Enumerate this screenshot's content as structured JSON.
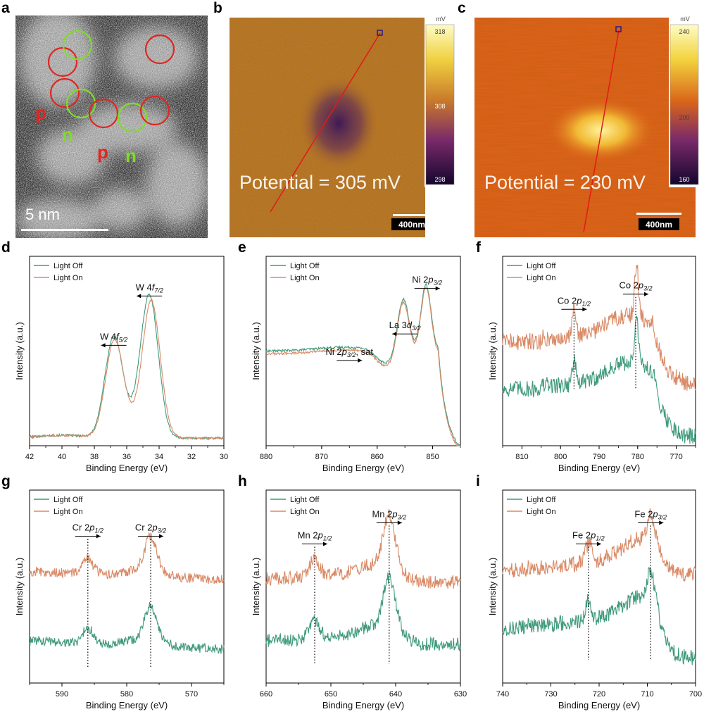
{
  "panel_letters": [
    "a",
    "b",
    "c",
    "d",
    "e",
    "f",
    "g",
    "h",
    "i"
  ],
  "stem": {
    "labels": {
      "p1": "p",
      "n1": "n",
      "p2": "p",
      "n2": "n"
    },
    "scale_bar": "5 nm",
    "colors": {
      "p": "#e0261f",
      "n": "#7fdc2a"
    }
  },
  "kpfm_b": {
    "unit": "mV",
    "cb_max": "318",
    "cb_mid": "308",
    "cb_min": "298",
    "potential": "Potential = 305 mV",
    "scale": "400nm",
    "colors": {
      "base": "#b8731f",
      "dark": "#2a0f4a"
    }
  },
  "kpfm_c": {
    "unit": "mV",
    "cb_max": "240",
    "cb_mid": "200",
    "cb_min": "160",
    "potential": "Potential = 230 mV",
    "scale": "400nm",
    "colors": {
      "base": "#d96018",
      "bright": "#ffe86a"
    }
  },
  "legend": {
    "off": "Light Off",
    "on": "Light On"
  },
  "axis": {
    "xlabel": "Binding Energy (eV)",
    "ylabel": "Intensity (a.u.)"
  },
  "colors": {
    "off": "#3f9a7c",
    "on": "#d98a66"
  },
  "chart_data": [
    {
      "id": "d",
      "type": "line",
      "xlim": [
        42,
        30
      ],
      "xticks": [
        "42",
        "40",
        "38",
        "36",
        "34",
        "32",
        "30"
      ],
      "peaks": [
        {
          "label": "W 4f",
          "sub": "5/2",
          "x": 36.8
        },
        {
          "label": "W 4f",
          "sub": "7/2",
          "x": 34.6
        }
      ]
    },
    {
      "id": "e",
      "type": "line",
      "xlim": [
        880,
        845
      ],
      "xticks": [
        "880",
        "870",
        "860",
        "850"
      ],
      "peaks": [
        {
          "label": "Ni 2p",
          "sub": "3/2",
          "suffix": ", sat",
          "x": 865
        },
        {
          "label": "La 3d",
          "sub": "3/2",
          "x": 855
        },
        {
          "label": "Ni 2p",
          "sub": "3/2",
          "x": 851
        }
      ]
    },
    {
      "id": "f",
      "type": "line",
      "xlim": [
        815,
        765
      ],
      "xticks": [
        "810",
        "800",
        "790",
        "780",
        "770"
      ],
      "peaks": [
        {
          "label": "Co 2p",
          "sub": "1/2",
          "x": 796.5
        },
        {
          "label": "Co 2p",
          "sub": "3/2",
          "x": 780.5
        }
      ]
    },
    {
      "id": "g",
      "type": "line",
      "xlim": [
        595,
        565
      ],
      "xticks": [
        "590",
        "580",
        "570"
      ],
      "peaks": [
        {
          "label": "Cr 2p",
          "sub": "1/2",
          "x": 586
        },
        {
          "label": "Cr 2p",
          "sub": "3/2",
          "x": 576.3
        }
      ]
    },
    {
      "id": "h",
      "type": "line",
      "xlim": [
        660,
        630
      ],
      "xticks": [
        "660",
        "650",
        "640",
        "630"
      ],
      "peaks": [
        {
          "label": "Mn 2p",
          "sub": "1/2",
          "x": 652.5
        },
        {
          "label": "Mn 2p",
          "sub": "3/2",
          "x": 641
        }
      ]
    },
    {
      "id": "i",
      "type": "line",
      "xlim": [
        740,
        700
      ],
      "xticks": [
        "740",
        "730",
        "720",
        "710",
        "700"
      ],
      "peaks": [
        {
          "label": "Fe 2p",
          "sub": "1/2",
          "x": 722.2
        },
        {
          "label": "Fe 2p",
          "sub": "3/2",
          "x": 709.3
        }
      ]
    }
  ]
}
